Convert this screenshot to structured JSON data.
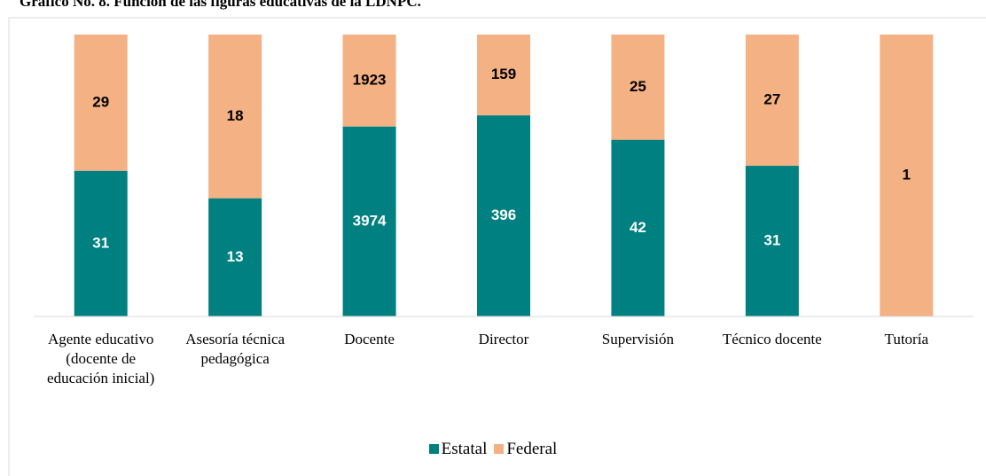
{
  "chart_data": {
    "type": "bar",
    "stacked": "percent",
    "title": "Gráfico No. 8. Función de las figuras educativas de la LDNPC.",
    "categories": [
      "Agente educativo (docente de educación inicial)",
      "Asesoría técnica pedagógica",
      "Docente",
      "Director",
      "Supervisión",
      "Técnico docente",
      "Tutoría"
    ],
    "series": [
      {
        "name": "Estatal",
        "color": "#008080",
        "values": [
          31,
          13,
          3974,
          396,
          42,
          31,
          0
        ]
      },
      {
        "name": "Federal",
        "color": "#f4b183",
        "values": [
          29,
          18,
          1923,
          159,
          25,
          27,
          1
        ]
      }
    ],
    "legend": "bottom"
  }
}
